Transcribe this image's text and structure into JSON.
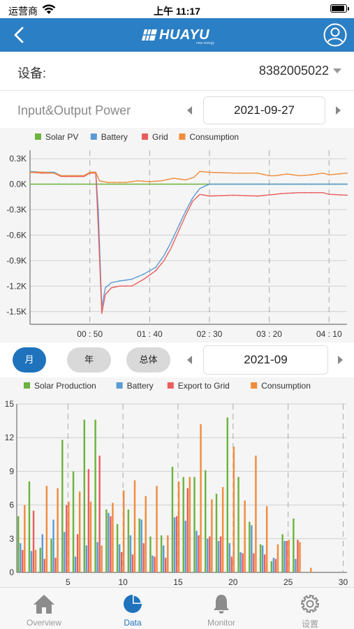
{
  "status_bar": {
    "carrier": "运营商",
    "time": "上午 11:17"
  },
  "header": {
    "brand": "HUAYU",
    "brand_sub": "new energy"
  },
  "device": {
    "label": "设备:",
    "value": "8382005022"
  },
  "power_section": {
    "title": "Input&Output Power",
    "date": "2021-09-27"
  },
  "period": {
    "tabs": [
      "月",
      "年",
      "总体"
    ],
    "active_index": 0,
    "date": "2021-09"
  },
  "tabbar": {
    "items": [
      {
        "label": "Overview",
        "icon": "home-icon"
      },
      {
        "label": "Data",
        "icon": "pie-chart-icon"
      },
      {
        "label": "Monitor",
        "icon": "bell-icon"
      },
      {
        "label": "设置",
        "icon": "gear-icon"
      }
    ],
    "active_index": 1
  },
  "colors": {
    "accent": "#2b7fc4",
    "solar": "#6cb33f",
    "battery": "#5b9bd5",
    "grid": "#ea5e5e",
    "consumption": "#f08c3a"
  },
  "chart_data": [
    {
      "type": "line",
      "title": "Input&Output Power",
      "y_ticks": [
        "0.3K",
        "0.0K",
        "-0.3K",
        "-0.6K",
        "-0.9K",
        "-1.2K",
        "-1.5K"
      ],
      "x_ticks": [
        "00 : 50",
        "01 : 40",
        "02 : 30",
        "03 : 20",
        "04 : 10"
      ],
      "ylim": [
        -1.65,
        0.35
      ],
      "x_range_minutes": [
        0,
        265
      ],
      "legend_position": "top-left",
      "grid": true,
      "series": [
        {
          "name": "Solar PV",
          "color": "#6cb33f",
          "points": [
            [
              0,
              0
            ],
            [
              50,
              0
            ],
            [
              100,
              0
            ],
            [
              150,
              0
            ],
            [
              200,
              0
            ],
            [
              265,
              0
            ]
          ]
        },
        {
          "name": "Battery",
          "color": "#5b9bd5",
          "points": [
            [
              0,
              0.15
            ],
            [
              10,
              0.14
            ],
            [
              20,
              0.14
            ],
            [
              26,
              0.1
            ],
            [
              35,
              0.1
            ],
            [
              45,
              0.1
            ],
            [
              50,
              0.14
            ],
            [
              55,
              0.14
            ],
            [
              57,
              -0.3
            ],
            [
              60,
              -1.45
            ],
            [
              63,
              -1.22
            ],
            [
              68,
              -1.16
            ],
            [
              75,
              -1.14
            ],
            [
              85,
              -1.12
            ],
            [
              95,
              -1.06
            ],
            [
              105,
              -0.98
            ],
            [
              112,
              -0.84
            ],
            [
              118,
              -0.68
            ],
            [
              124,
              -0.5
            ],
            [
              130,
              -0.32
            ],
            [
              136,
              -0.16
            ],
            [
              142,
              -0.05
            ],
            [
              150,
              0
            ],
            [
              170,
              0
            ],
            [
              200,
              0
            ],
            [
              230,
              0
            ],
            [
              265,
              0
            ]
          ]
        },
        {
          "name": "Grid",
          "color": "#ea5e5e",
          "points": [
            [
              0,
              0.14
            ],
            [
              10,
              0.13
            ],
            [
              20,
              0.13
            ],
            [
              26,
              0.09
            ],
            [
              35,
              0.09
            ],
            [
              45,
              0.09
            ],
            [
              50,
              0.13
            ],
            [
              55,
              0.13
            ],
            [
              57,
              -0.5
            ],
            [
              60,
              -1.52
            ],
            [
              63,
              -1.3
            ],
            [
              68,
              -1.22
            ],
            [
              75,
              -1.2
            ],
            [
              85,
              -1.2
            ],
            [
              95,
              -1.12
            ],
            [
              105,
              -1.02
            ],
            [
              112,
              -0.9
            ],
            [
              118,
              -0.75
            ],
            [
              124,
              -0.56
            ],
            [
              130,
              -0.37
            ],
            [
              136,
              -0.2
            ],
            [
              142,
              -0.12
            ],
            [
              150,
              -0.14
            ],
            [
              170,
              -0.13
            ],
            [
              190,
              -0.14
            ],
            [
              205,
              -0.12
            ],
            [
              210,
              -0.11
            ],
            [
              225,
              -0.1
            ],
            [
              245,
              -0.1
            ],
            [
              250,
              -0.12
            ],
            [
              265,
              -0.13
            ]
          ]
        },
        {
          "name": "Consumption",
          "color": "#f08c3a",
          "points": [
            [
              0,
              0.14
            ],
            [
              10,
              0.14
            ],
            [
              20,
              0.13
            ],
            [
              26,
              0.1
            ],
            [
              35,
              0.1
            ],
            [
              45,
              0.1
            ],
            [
              50,
              0.14
            ],
            [
              55,
              0.14
            ],
            [
              58,
              0.04
            ],
            [
              65,
              0.02
            ],
            [
              80,
              0.02
            ],
            [
              90,
              0.04
            ],
            [
              100,
              0.03
            ],
            [
              110,
              0.04
            ],
            [
              120,
              0.07
            ],
            [
              130,
              0.05
            ],
            [
              137,
              0.08
            ],
            [
              142,
              0.15
            ],
            [
              150,
              0.14
            ],
            [
              170,
              0.13
            ],
            [
              190,
              0.13
            ],
            [
              200,
              0.1
            ],
            [
              205,
              0.1
            ],
            [
              215,
              0.12
            ],
            [
              225,
              0.1
            ],
            [
              235,
              0.11
            ],
            [
              245,
              0.13
            ],
            [
              250,
              0.11
            ],
            [
              265,
              0.13
            ]
          ]
        }
      ]
    },
    {
      "type": "bar",
      "y_ticks": [
        "15",
        "12",
        "9",
        "6",
        "3",
        "0"
      ],
      "x_ticks": [
        "5",
        "10",
        "15",
        "20",
        "25",
        "30"
      ],
      "ylim": [
        0,
        15
      ],
      "legend_position": "top-left",
      "grid": true,
      "categories": [
        1,
        2,
        3,
        4,
        5,
        6,
        7,
        8,
        9,
        10,
        11,
        12,
        13,
        14,
        15,
        16,
        17,
        18,
        19,
        20,
        21,
        22,
        23,
        24,
        25,
        26,
        27,
        28,
        29,
        30
      ],
      "series": [
        {
          "name": "Solar Production",
          "color": "#6cb33f",
          "values": [
            5.0,
            8.1,
            2.2,
            3.0,
            11.8,
            9.0,
            13.6,
            13.6,
            5.6,
            4.3,
            5.6,
            4.8,
            3.2,
            3.3,
            9.4,
            8.5,
            8.5,
            9.1,
            7.0,
            13.8,
            8.5,
            4.5,
            2.5,
            1.0,
            3.4,
            4.8,
            0,
            0,
            0,
            0
          ]
        },
        {
          "name": "Battery",
          "color": "#5b9bd5",
          "values": [
            2.6,
            1.9,
            3.4,
            4.7,
            3.6,
            1.4,
            2.4,
            2.7,
            5.3,
            2.5,
            3.3,
            4.7,
            1.5,
            2.4,
            4.9,
            4.6,
            3.7,
            3.0,
            2.8,
            2.6,
            1.8,
            4.2,
            2.4,
            1.3,
            2.8,
            1.2,
            0,
            0,
            0,
            0
          ]
        },
        {
          "name": "Export to Grid",
          "color": "#ea5e5e",
          "values": [
            2.0,
            5.5,
            1.2,
            1.3,
            6.0,
            3.4,
            9.2,
            10.4,
            5.0,
            1.8,
            1.6,
            2.6,
            1.4,
            1.3,
            5.0,
            7.5,
            3.3,
            3.2,
            3.2,
            1.4,
            1.7,
            1.7,
            1.6,
            1.2,
            2.8,
            2.9,
            0,
            0,
            0,
            0
          ]
        },
        {
          "name": "Consumption",
          "color": "#f08c3a",
          "values": [
            6.0,
            2.0,
            7.7,
            7.5,
            6.3,
            7.2,
            6.3,
            2.4,
            6.2,
            7.3,
            8.2,
            6.8,
            7.7,
            3.3,
            8.1,
            8.5,
            13.2,
            6.5,
            7.6,
            11.2,
            6.4,
            10.4,
            5.9,
            2.5,
            2.9,
            2.7,
            0.4,
            0,
            0,
            0
          ]
        }
      ]
    }
  ]
}
